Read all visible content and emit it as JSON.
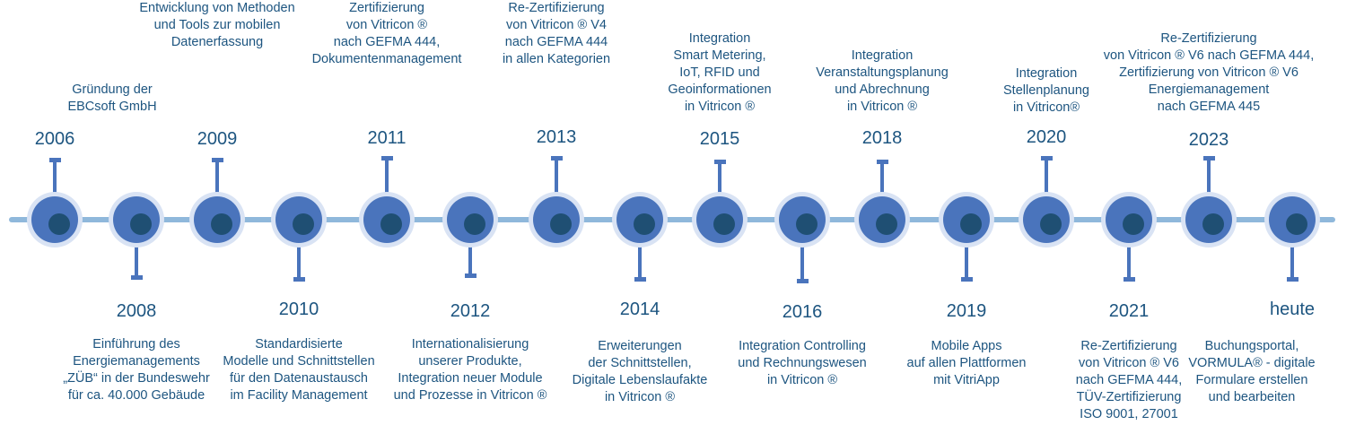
{
  "colors": {
    "axis": "#8fb8db",
    "node_halo": "#d9e3f4",
    "node_ring": "#4a74bc",
    "node_center": "#1f4f73",
    "text": "#1d5580"
  },
  "milestones": [
    {
      "year": "2006",
      "side": "top",
      "lines": [
        "Gründung der",
        "EBCsoft GmbH"
      ]
    },
    {
      "year": "2008",
      "side": "bottom",
      "lines": [
        "Einführung des",
        "Energiemanagements",
        "„ZÜB“ in der Bundeswehr",
        "für ca. 40.000 Gebäude"
      ]
    },
    {
      "year": "2009",
      "side": "top",
      "lines": [
        "Entwicklung von Methoden",
        "und Tools zur mobilen",
        "Datenerfassung"
      ]
    },
    {
      "year": "2010",
      "side": "bottom",
      "lines": [
        "Standardisierte",
        "Modelle und Schnittstellen",
        "für den Datenaustausch",
        "im Facility Management"
      ]
    },
    {
      "year": "2011",
      "side": "top",
      "lines": [
        "Zertifizierung",
        "von Vitricon ®",
        "nach GEFMA 444,",
        "Dokumentenmanagement"
      ]
    },
    {
      "year": "2012",
      "side": "bottom",
      "lines": [
        "Internationalisierung",
        "unserer Produkte,",
        "Integration neuer Module",
        "und Prozesse in Vitricon ®"
      ]
    },
    {
      "year": "2013",
      "side": "top",
      "lines": [
        "Re-Zertifizierung",
        "von Vitricon ® V4",
        "nach GEFMA 444",
        "in allen Kategorien"
      ]
    },
    {
      "year": "2014",
      "side": "bottom",
      "lines": [
        "Erweiterungen",
        "der Schnittstellen,",
        "Digitale Lebenslaufakte",
        "in Vitricon ®"
      ]
    },
    {
      "year": "2015",
      "side": "top",
      "lines": [
        "Integration",
        "Smart Metering,",
        "IoT, RFID und",
        "Geoinformationen",
        "in Vitricon ®"
      ]
    },
    {
      "year": "2016",
      "side": "bottom",
      "lines": [
        "Integration Controlling",
        "und Rechnungswesen",
        "in Vitricon ®"
      ]
    },
    {
      "year": "2018",
      "side": "top",
      "lines": [
        "Integration",
        "Veranstaltungsplanung",
        "und Abrechnung",
        "in Vitricon ®"
      ]
    },
    {
      "year": "2019",
      "side": "bottom",
      "lines": [
        "Mobile Apps",
        "auf allen Plattformen",
        "mit VitriApp"
      ]
    },
    {
      "year": "2020",
      "side": "top",
      "lines": [
        "Integration",
        "Stellenplanung",
        "in Vitricon®"
      ]
    },
    {
      "year": "2021",
      "side": "bottom",
      "lines": [
        "Re-Zertifizierung",
        "von Vitricon ® V6",
        "nach GEFMA 444,",
        "TÜV-Zertifizierung",
        "ISO 9001, 27001"
      ]
    },
    {
      "year": "2023",
      "side": "top",
      "lines": [
        "Re-Zertifizierung",
        "von Vitricon ® V6 nach GEFMA 444,",
        "Zertifizierung von Vitricon ® V6",
        "Energiemanagement",
        "nach GEFMA 445"
      ]
    },
    {
      "year": "heute",
      "side": "bottom",
      "lines": [
        "Buchungsportal,",
        "VORMULA® - digitale",
        "Formulare erstellen",
        "und bearbeiten"
      ]
    }
  ]
}
